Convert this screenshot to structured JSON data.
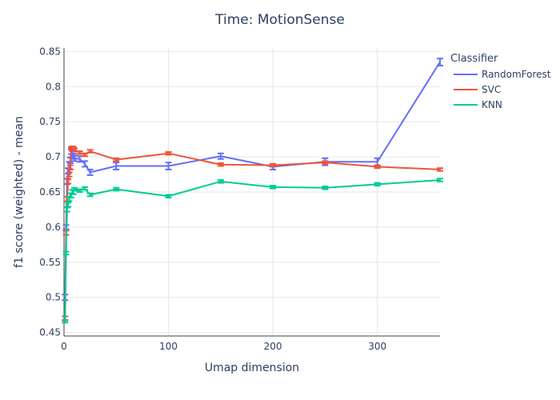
{
  "chart_data": {
    "type": "line",
    "title": "Time: MotionSense",
    "xlabel": "Umap dimension",
    "ylabel": "f1 score (weighted) - mean",
    "xlim": [
      0,
      360
    ],
    "ylim": [
      0.445,
      0.855
    ],
    "x_ticks": [
      0,
      100,
      200,
      300
    ],
    "y_ticks": [
      0.45,
      0.5,
      0.55,
      0.6,
      0.65,
      0.7,
      0.75,
      0.8,
      0.85
    ],
    "grid": true,
    "legend": {
      "title": "Classifier",
      "position": "right"
    },
    "series": [
      {
        "name": "RandomForest",
        "color": "#636efa",
        "x": [
          1,
          2,
          3,
          4,
          5,
          6,
          7,
          8,
          9,
          10,
          15,
          20,
          25,
          50,
          100,
          150,
          200,
          250,
          300,
          360
        ],
        "y": [
          0.5,
          0.6,
          0.665,
          0.68,
          0.688,
          0.695,
          0.708,
          0.704,
          0.701,
          0.698,
          0.697,
          0.69,
          0.678,
          0.687,
          0.687,
          0.701,
          0.686,
          0.693,
          0.693,
          0.835
        ],
        "err": [
          0.004,
          0.003,
          0.004,
          0.004,
          0.005,
          0.004,
          0.004,
          0.004,
          0.004,
          0.004,
          0.004,
          0.004,
          0.004,
          0.005,
          0.005,
          0.004,
          0.004,
          0.005,
          0.005,
          0.005
        ]
      },
      {
        "name": "SVC",
        "color": "#ef553b",
        "x": [
          1,
          2,
          3,
          4,
          5,
          6,
          7,
          8,
          9,
          10,
          15,
          20,
          25,
          50,
          100,
          150,
          200,
          250,
          300,
          360
        ],
        "y": [
          0.47,
          0.592,
          0.64,
          0.665,
          0.675,
          0.685,
          0.712,
          0.713,
          0.712,
          0.71,
          0.706,
          0.703,
          0.708,
          0.696,
          0.705,
          0.689,
          0.688,
          0.692,
          0.686,
          0.682
        ],
        "err": [
          0.003,
          0.003,
          0.003,
          0.003,
          0.003,
          0.003,
          0.002,
          0.002,
          0.002,
          0.002,
          0.002,
          0.002,
          0.002,
          0.002,
          0.002,
          0.002,
          0.002,
          0.002,
          0.002,
          0.002
        ]
      },
      {
        "name": "KNN",
        "color": "#00cc96",
        "x": [
          1,
          2,
          3,
          4,
          5,
          6,
          7,
          8,
          9,
          10,
          15,
          20,
          25,
          50,
          100,
          150,
          200,
          250,
          300,
          360
        ],
        "y": [
          0.466,
          0.563,
          0.625,
          0.632,
          0.64,
          0.645,
          0.645,
          0.65,
          0.65,
          0.654,
          0.652,
          0.655,
          0.646,
          0.654,
          0.644,
          0.665,
          0.657,
          0.656,
          0.661,
          0.667
        ],
        "err": [
          0.002,
          0.002,
          0.003,
          0.003,
          0.003,
          0.003,
          0.003,
          0.003,
          0.003,
          0.002,
          0.002,
          0.002,
          0.002,
          0.002,
          0.002,
          0.002,
          0.002,
          0.002,
          0.002,
          0.002
        ]
      }
    ]
  }
}
